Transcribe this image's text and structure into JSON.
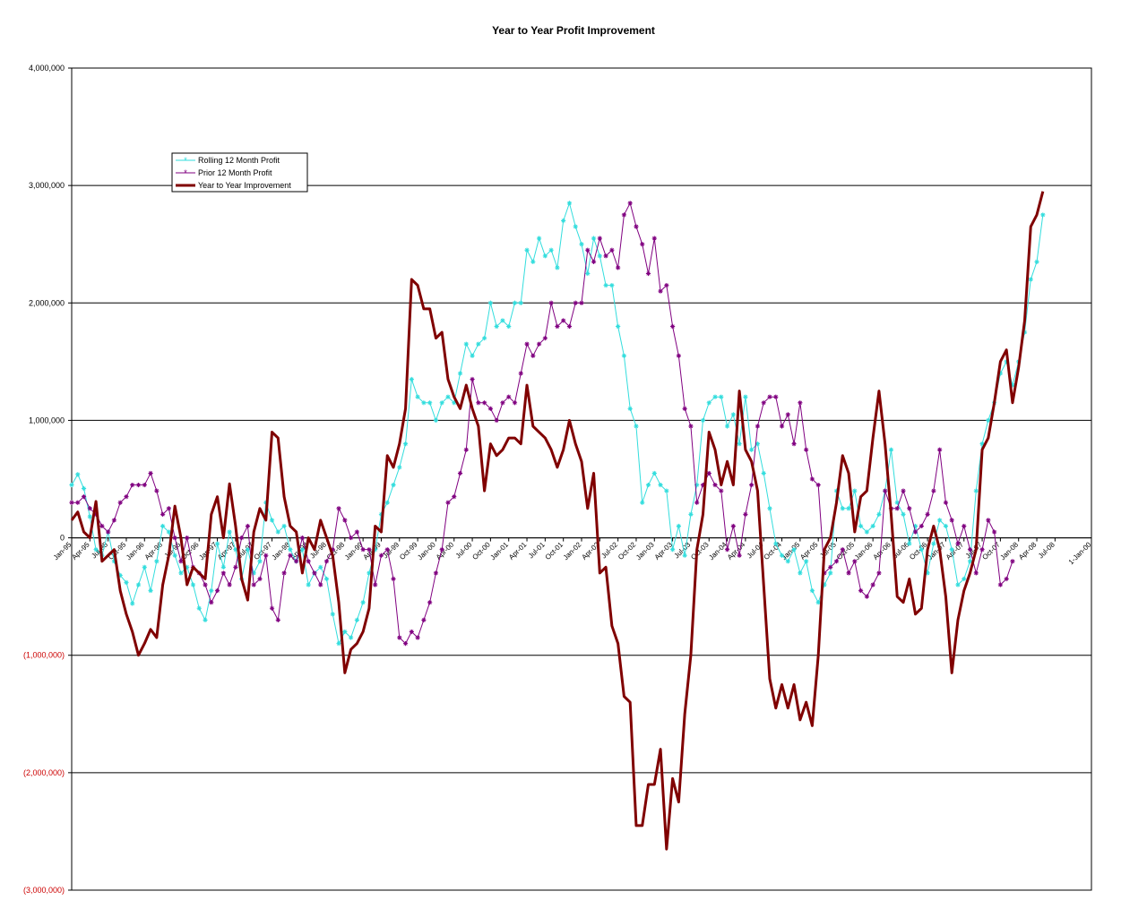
{
  "chart_data": {
    "type": "line",
    "title": "Year to Year Profit Improvement",
    "xlabel": "",
    "ylabel": "",
    "ylim": [
      -3000000,
      4000000
    ],
    "y_ticks": [
      {
        "value": 4000000,
        "label": "4,000,000",
        "negative": false
      },
      {
        "value": 3000000,
        "label": "3,000,000",
        "negative": false
      },
      {
        "value": 2000000,
        "label": "2,000,000",
        "negative": false
      },
      {
        "value": 1000000,
        "label": "1,000,000",
        "negative": false
      },
      {
        "value": 0,
        "label": "0",
        "negative": false
      },
      {
        "value": -1000000,
        "label": "(1,000,000)",
        "negative": true
      },
      {
        "value": -2000000,
        "label": "(2,000,000)",
        "negative": true
      },
      {
        "value": -3000000,
        "label": "(3,000,000)",
        "negative": true
      }
    ],
    "x_start": "Jan-95",
    "x_months_range": [
      0,
      168
    ],
    "x_ticks": [
      {
        "month": 0,
        "label": "Jan-95"
      },
      {
        "month": 3,
        "label": "Apr-95"
      },
      {
        "month": 6,
        "label": "Jul-95"
      },
      {
        "month": 9,
        "label": "Oct-95"
      },
      {
        "month": 12,
        "label": "Jan-96"
      },
      {
        "month": 15,
        "label": "Apr-96"
      },
      {
        "month": 18,
        "label": "Jul-96"
      },
      {
        "month": 21,
        "label": "Oct-96"
      },
      {
        "month": 24,
        "label": "Jan-97"
      },
      {
        "month": 27,
        "label": "Apr-97"
      },
      {
        "month": 30,
        "label": "Jul-97"
      },
      {
        "month": 33,
        "label": "Oct-97"
      },
      {
        "month": 36,
        "label": "Jan-98"
      },
      {
        "month": 39,
        "label": "Apr-98"
      },
      {
        "month": 42,
        "label": "Jul-98"
      },
      {
        "month": 45,
        "label": "Oct-98"
      },
      {
        "month": 48,
        "label": "Jan-99"
      },
      {
        "month": 51,
        "label": "Apr-99"
      },
      {
        "month": 54,
        "label": "Jul-99"
      },
      {
        "month": 57,
        "label": "Oct-99"
      },
      {
        "month": 60,
        "label": "Jan-00"
      },
      {
        "month": 63,
        "label": "Apr-00"
      },
      {
        "month": 66,
        "label": "Jul-00"
      },
      {
        "month": 69,
        "label": "Oct-00"
      },
      {
        "month": 72,
        "label": "Jan-01"
      },
      {
        "month": 75,
        "label": "Apr-01"
      },
      {
        "month": 78,
        "label": "Jul-01"
      },
      {
        "month": 81,
        "label": "Oct-01"
      },
      {
        "month": 84,
        "label": "Jan-02"
      },
      {
        "month": 87,
        "label": "Apr-02"
      },
      {
        "month": 90,
        "label": "Jul-02"
      },
      {
        "month": 93,
        "label": "Oct-02"
      },
      {
        "month": 96,
        "label": "Jan-03"
      },
      {
        "month": 99,
        "label": "Apr-03"
      },
      {
        "month": 102,
        "label": "Jul-03"
      },
      {
        "month": 105,
        "label": "Oct-03"
      },
      {
        "month": 108,
        "label": "Jan-04"
      },
      {
        "month": 111,
        "label": "Apr-04"
      },
      {
        "month": 114,
        "label": "Jul-04"
      },
      {
        "month": 117,
        "label": "Oct-04"
      },
      {
        "month": 120,
        "label": "Jan-05"
      },
      {
        "month": 123,
        "label": "Apr-05"
      },
      {
        "month": 126,
        "label": "Jul-05"
      },
      {
        "month": 129,
        "label": "Oct-05"
      },
      {
        "month": 132,
        "label": "Jan-06"
      },
      {
        "month": 135,
        "label": "Apr-06"
      },
      {
        "month": 138,
        "label": "Jul-06"
      },
      {
        "month": 141,
        "label": "Oct-06"
      },
      {
        "month": 144,
        "label": "Jan-07"
      },
      {
        "month": 147,
        "label": "Apr-07"
      },
      {
        "month": 150,
        "label": "Jul-07"
      },
      {
        "month": 153,
        "label": "Oct-07"
      },
      {
        "month": 156,
        "label": "Jan-08"
      },
      {
        "month": 159,
        "label": "Apr-08"
      },
      {
        "month": 162,
        "label": "Jul-08"
      },
      {
        "month": 168,
        "label": "1-Jan-00"
      }
    ],
    "grid": true,
    "legend_position": "top-left",
    "series": [
      {
        "name": "Rolling 12 Month Profit",
        "color": "#33dddd",
        "line_width": 1,
        "marker": "asterisk",
        "values": [
          450000,
          540000,
          420000,
          180000,
          -100000,
          -150000,
          50000,
          -200000,
          -320000,
          -380000,
          -560000,
          -400000,
          -250000,
          -450000,
          -200000,
          100000,
          50000,
          -150000,
          -300000,
          -250000,
          -400000,
          -600000,
          -700000,
          -450000,
          -50000,
          -250000,
          50000,
          -100000,
          -350000,
          -100000,
          -300000,
          -200000,
          300000,
          150000,
          50000,
          100000,
          -100000,
          -200000,
          -100000,
          -400000,
          -300000,
          -250000,
          -350000,
          -650000,
          -900000,
          -800000,
          -850000,
          -700000,
          -550000,
          -300000,
          -100000,
          200000,
          300000,
          450000,
          600000,
          800000,
          1350000,
          1200000,
          1150000,
          1150000,
          1000000,
          1150000,
          1200000,
          1150000,
          1400000,
          1650000,
          1550000,
          1650000,
          1700000,
          2000000,
          1800000,
          1850000,
          1800000,
          2000000,
          2000000,
          2450000,
          2350000,
          2550000,
          2400000,
          2450000,
          2300000,
          2700000,
          2850000,
          2650000,
          2500000,
          2250000,
          2550000,
          2400000,
          2150000,
          2150000,
          1800000,
          1550000,
          1100000,
          950000,
          300000,
          450000,
          550000,
          450000,
          400000,
          -100000,
          100000,
          -150000,
          200000,
          450000,
          1000000,
          1150000,
          1200000,
          1200000,
          950000,
          1050000,
          800000,
          1200000,
          750000,
          800000,
          550000,
          250000,
          -50000,
          -150000,
          -200000,
          -100000,
          -300000,
          -200000,
          -450000,
          -550000,
          -400000,
          -300000,
          400000,
          250000,
          250000,
          400000,
          100000,
          50000,
          100000,
          200000,
          400000,
          750000,
          300000,
          200000,
          -50000,
          100000,
          -100000,
          -300000,
          -50000,
          150000,
          100000,
          -100000,
          -400000,
          -350000,
          -200000,
          400000,
          800000,
          1000000,
          1150000,
          1400000,
          1500000,
          1300000,
          1500000,
          1750000,
          2200000,
          2350000,
          2750000
        ]
      },
      {
        "name": "Prior 12 Month Profit",
        "color": "#800080",
        "line_width": 1,
        "marker": "asterisk",
        "values": [
          300000,
          300000,
          350000,
          250000,
          200000,
          100000,
          50000,
          150000,
          300000,
          350000,
          450000,
          450000,
          450000,
          550000,
          400000,
          200000,
          250000,
          0,
          -200000,
          0,
          -250000,
          -300000,
          -400000,
          -550000,
          -450000,
          -300000,
          -400000,
          -250000,
          0,
          100000,
          -400000,
          -350000,
          -150000,
          -600000,
          -700000,
          -300000,
          -150000,
          -200000,
          0,
          -200000,
          -300000,
          -400000,
          -200000,
          -100000,
          250000,
          150000,
          0,
          50000,
          -100000,
          -100000,
          -400000,
          -150000,
          -100000,
          -350000,
          -850000,
          -900000,
          -800000,
          -850000,
          -700000,
          -550000,
          -300000,
          -100000,
          300000,
          350000,
          550000,
          750000,
          1350000,
          1150000,
          1150000,
          1100000,
          1000000,
          1150000,
          1200000,
          1150000,
          1400000,
          1650000,
          1550000,
          1650000,
          1700000,
          2000000,
          1800000,
          1850000,
          1800000,
          2000000,
          2000000,
          2450000,
          2350000,
          2550000,
          2400000,
          2450000,
          2300000,
          2750000,
          2850000,
          2650000,
          2500000,
          2250000,
          2550000,
          2100000,
          2150000,
          1800000,
          1550000,
          1100000,
          950000,
          300000,
          450000,
          550000,
          450000,
          400000,
          -100000,
          100000,
          -150000,
          200000,
          450000,
          950000,
          1150000,
          1200000,
          1200000,
          950000,
          1050000,
          800000,
          1150000,
          750000,
          500000,
          450000,
          -300000,
          -250000,
          -200000,
          -100000,
          -300000,
          -200000,
          -450000,
          -500000,
          -400000,
          -300000,
          400000,
          250000,
          250000,
          400000,
          250000,
          50000,
          100000,
          200000,
          400000,
          750000,
          300000,
          150000,
          -50000,
          100000,
          -100000,
          -300000,
          -100000,
          150000,
          50000,
          -400000,
          -350000,
          -200000
        ]
      },
      {
        "name": "Year to Year Improvement",
        "color": "#800000",
        "line_width": 3,
        "marker": "none",
        "values": [
          150000,
          220000,
          50000,
          0,
          310000,
          -200000,
          -150000,
          -100000,
          -450000,
          -650000,
          -800000,
          -1000000,
          -900000,
          -780000,
          -850000,
          -400000,
          -150000,
          270000,
          0,
          -400000,
          -250000,
          -300000,
          -350000,
          200000,
          350000,
          0,
          460000,
          100000,
          -350000,
          -530000,
          50000,
          250000,
          150000,
          900000,
          850000,
          350000,
          100000,
          50000,
          -300000,
          0,
          -100000,
          150000,
          0,
          -150000,
          -550000,
          -1150000,
          -950000,
          -900000,
          -800000,
          -600000,
          100000,
          50000,
          700000,
          600000,
          800000,
          1100000,
          2200000,
          2150000,
          1950000,
          1950000,
          1700000,
          1750000,
          1350000,
          1200000,
          1100000,
          1300000,
          1100000,
          950000,
          400000,
          800000,
          700000,
          750000,
          850000,
          850000,
          800000,
          1300000,
          950000,
          900000,
          850000,
          750000,
          600000,
          750000,
          1000000,
          800000,
          650000,
          250000,
          550000,
          -300000,
          -250000,
          -750000,
          -900000,
          -1350000,
          -1400000,
          -2450000,
          -2450000,
          -2100000,
          -2100000,
          -1800000,
          -2650000,
          -2050000,
          -2250000,
          -1500000,
          -1000000,
          -100000,
          200000,
          900000,
          750000,
          450000,
          650000,
          450000,
          1250000,
          750000,
          650000,
          400000,
          -400000,
          -1200000,
          -1450000,
          -1250000,
          -1450000,
          -1250000,
          -1550000,
          -1400000,
          -1600000,
          -1000000,
          -100000,
          0,
          300000,
          700000,
          550000,
          50000,
          350000,
          400000,
          850000,
          1250000,
          800000,
          200000,
          -500000,
          -550000,
          -350000,
          -650000,
          -600000,
          -100000,
          100000,
          -100000,
          -500000,
          -1150000,
          -700000,
          -450000,
          -300000,
          -100000,
          750000,
          850000,
          1150000,
          1500000,
          1600000,
          1150000,
          1450000,
          1850000,
          2650000,
          2750000,
          2950000
        ]
      }
    ]
  }
}
